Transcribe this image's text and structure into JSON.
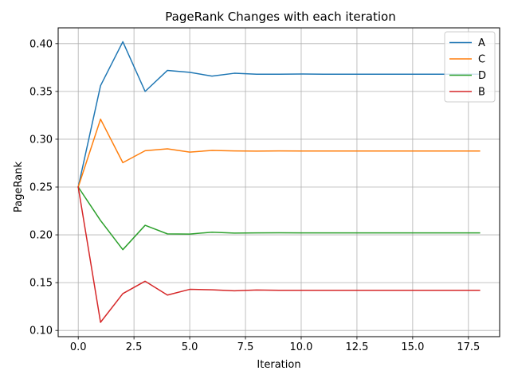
{
  "chart_data": {
    "type": "line",
    "title": "PageRank Changes with each iteration",
    "xlabel": "Iteration",
    "ylabel": "PageRank",
    "xlim": [
      -0.9,
      18.9
    ],
    "ylim": [
      0.0935,
      0.4165
    ],
    "xticks": [
      0.0,
      2.5,
      5.0,
      7.5,
      10.0,
      12.5,
      15.0,
      17.5
    ],
    "xtick_labels": [
      "0.0",
      "2.5",
      "5.0",
      "7.5",
      "10.0",
      "12.5",
      "15.0",
      "17.5"
    ],
    "yticks": [
      0.1,
      0.15,
      0.2,
      0.25,
      0.3,
      0.35,
      0.4
    ],
    "ytick_labels": [
      "0.10",
      "0.15",
      "0.20",
      "0.25",
      "0.30",
      "0.35",
      "0.40"
    ],
    "grid": true,
    "legend_position": "top-right",
    "x": [
      0,
      1,
      2,
      3,
      4,
      5,
      6,
      7,
      8,
      9,
      10,
      11,
      12,
      13,
      14,
      15,
      16,
      17,
      18
    ],
    "series": [
      {
        "name": "A",
        "color": "#1f77b4",
        "values": [
          0.25,
          0.356,
          0.402,
          0.35,
          0.372,
          0.37,
          0.366,
          0.369,
          0.368,
          0.368,
          0.3682,
          0.368,
          0.368,
          0.368,
          0.368,
          0.368,
          0.368,
          0.368,
          0.368
        ]
      },
      {
        "name": "C",
        "color": "#ff7f0e",
        "values": [
          0.25,
          0.321,
          0.2755,
          0.288,
          0.29,
          0.2865,
          0.2883,
          0.2878,
          0.2876,
          0.2878,
          0.2877,
          0.2877,
          0.2877,
          0.2877,
          0.2877,
          0.2877,
          0.2877,
          0.2877,
          0.2877
        ]
      },
      {
        "name": "D",
        "color": "#2ca02c",
        "values": [
          0.25,
          0.215,
          0.1845,
          0.21,
          0.201,
          0.2008,
          0.2028,
          0.2018,
          0.202,
          0.2021,
          0.202,
          0.202,
          0.202,
          0.202,
          0.202,
          0.202,
          0.202,
          0.202,
          0.202
        ]
      },
      {
        "name": "B",
        "color": "#d62728",
        "values": [
          0.25,
          0.1085,
          0.1385,
          0.1515,
          0.137,
          0.143,
          0.1425,
          0.1415,
          0.1423,
          0.142,
          0.142,
          0.142,
          0.142,
          0.142,
          0.142,
          0.142,
          0.142,
          0.142,
          0.142
        ]
      }
    ]
  }
}
